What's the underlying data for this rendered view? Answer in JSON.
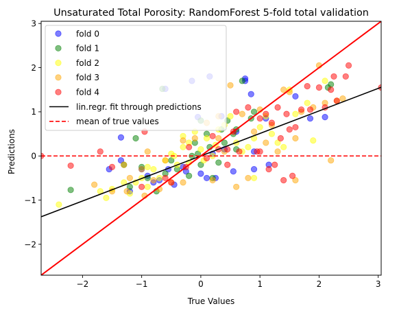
{
  "chart_data": {
    "type": "scatter",
    "title": "Unsaturated Total Porosity: RandomForest 5-fold total validation",
    "xlabel": "True Values",
    "ylabel": "Predictions",
    "xlim": [
      -2.7,
      3.05
    ],
    "ylim": [
      -2.7,
      3.05
    ],
    "xticks": [
      -2,
      -1,
      0,
      1,
      2,
      3
    ],
    "yticks": [
      -2,
      -1,
      0,
      1,
      2,
      3
    ],
    "xtick_labels": [
      "−2",
      "−1",
      "0",
      "1",
      "2",
      "3"
    ],
    "ytick_labels": [
      "−2",
      "−1",
      "0",
      "1",
      "2",
      "3"
    ],
    "grid": false,
    "legend_position": "top-left",
    "series": [
      {
        "name": "fold 0",
        "color": "#0000ff",
        "points": [
          [
            -1.35,
            0.42
          ],
          [
            -0.6,
            1.52
          ],
          [
            0.15,
            1.8
          ],
          [
            -0.15,
            1.7
          ],
          [
            0.75,
            1.75
          ],
          [
            0.75,
            1.7
          ],
          [
            0.85,
            1.4
          ],
          [
            1.6,
            1.35
          ],
          [
            2.1,
            0.88
          ],
          [
            1.85,
            0.85
          ],
          [
            -0.05,
            0.88
          ],
          [
            0.35,
            0.9
          ],
          [
            0.2,
            0.05
          ],
          [
            0.1,
            -0.5
          ],
          [
            -0.3,
            -0.25
          ],
          [
            -0.55,
            -0.3
          ],
          [
            -0.8,
            -0.6
          ],
          [
            -1.2,
            -0.8
          ],
          [
            -1.55,
            -0.3
          ],
          [
            -1.35,
            -0.1
          ],
          [
            0.4,
            0.15
          ],
          [
            0.0,
            -0.4
          ],
          [
            -0.9,
            -0.45
          ],
          [
            -1.0,
            -0.3
          ],
          [
            0.55,
            -0.35
          ],
          [
            0.9,
            -0.3
          ],
          [
            -0.7,
            -0.55
          ],
          [
            1.1,
            0.85
          ],
          [
            0.25,
            -0.5
          ],
          [
            -0.25,
            -0.35
          ],
          [
            -0.45,
            -0.65
          ],
          [
            0.6,
            0.55
          ],
          [
            0.9,
            0.1
          ],
          [
            1.15,
            -0.2
          ]
        ]
      },
      {
        "name": "fold 1",
        "color": "#008000",
        "points": [
          [
            -2.2,
            -0.77
          ],
          [
            -1.1,
            0.4
          ],
          [
            -0.65,
            1.52
          ],
          [
            0.0,
            0.8
          ],
          [
            0.45,
            0.8
          ],
          [
            0.7,
            1.7
          ],
          [
            0.6,
            0.6
          ],
          [
            0.85,
            0.85
          ],
          [
            0.9,
            1.0
          ],
          [
            2.2,
            1.62
          ],
          [
            2.15,
            1.55
          ],
          [
            -0.05,
            0.05
          ],
          [
            0.1,
            0.5
          ],
          [
            -0.4,
            -0.3
          ],
          [
            -0.6,
            -0.4
          ],
          [
            -0.9,
            -0.5
          ],
          [
            -1.2,
            -0.7
          ],
          [
            -1.3,
            -0.2
          ],
          [
            0.3,
            -0.15
          ],
          [
            0.4,
            0.3
          ],
          [
            0.2,
            -0.5
          ],
          [
            -0.2,
            -0.45
          ],
          [
            -0.75,
            -0.8
          ],
          [
            -1.0,
            -0.25
          ],
          [
            0.15,
            0.2
          ],
          [
            0.55,
            0.5
          ],
          [
            0.0,
            -0.2
          ],
          [
            -0.15,
            0.0
          ],
          [
            0.35,
            0.6
          ],
          [
            0.6,
            0.15
          ],
          [
            -0.1,
            0.3
          ],
          [
            -0.5,
            -0.1
          ]
        ]
      },
      {
        "name": "fold 2",
        "color": "#ffff00",
        "points": [
          [
            -2.4,
            -1.1
          ],
          [
            -1.5,
            -0.75
          ],
          [
            -1.6,
            -0.95
          ],
          [
            -1.3,
            -0.6
          ],
          [
            -1.2,
            -0.85
          ],
          [
            -1.0,
            -0.5
          ],
          [
            -0.9,
            -0.7
          ],
          [
            -0.8,
            -0.3
          ],
          [
            -0.6,
            -0.1
          ],
          [
            -0.5,
            0.05
          ],
          [
            -0.4,
            -0.2
          ],
          [
            -0.3,
            0.2
          ],
          [
            -0.2,
            0.3
          ],
          [
            -0.1,
            0.55
          ],
          [
            0.0,
            0.15
          ],
          [
            0.1,
            0.4
          ],
          [
            0.2,
            0.0
          ],
          [
            0.3,
            0.6
          ],
          [
            0.4,
            0.7
          ],
          [
            0.5,
            0.9
          ],
          [
            0.6,
            0.3
          ],
          [
            0.7,
            0.1
          ],
          [
            0.8,
            0.2
          ],
          [
            0.9,
            0.4
          ],
          [
            1.0,
            0.65
          ],
          [
            1.1,
            0.9
          ],
          [
            1.2,
            0.5
          ],
          [
            1.3,
            0.3
          ],
          [
            1.4,
            0.2
          ],
          [
            1.5,
            1.5
          ],
          [
            1.6,
            0.95
          ],
          [
            1.8,
            1.2
          ],
          [
            1.9,
            0.35
          ],
          [
            2.1,
            1.7
          ],
          [
            -0.9,
            -0.25
          ],
          [
            -1.1,
            -0.6
          ],
          [
            -0.7,
            -0.5
          ],
          [
            -0.45,
            0.0
          ],
          [
            0.25,
            0.25
          ],
          [
            0.05,
            -0.1
          ],
          [
            -1.7,
            -0.8
          ],
          [
            -0.3,
            0.45
          ],
          [
            0.9,
            -0.5
          ],
          [
            -0.2,
            -0.15
          ]
        ]
      },
      {
        "name": "fold 3",
        "color": "#ffa500",
        "points": [
          [
            -1.8,
            -0.65
          ],
          [
            -1.5,
            -0.8
          ],
          [
            -1.2,
            -0.5
          ],
          [
            -1.0,
            -0.3
          ],
          [
            -0.9,
            0.1
          ],
          [
            -0.7,
            -0.75
          ],
          [
            -0.5,
            -0.6
          ],
          [
            -0.3,
            0.35
          ],
          [
            -0.1,
            0.4
          ],
          [
            0.1,
            0.75
          ],
          [
            0.3,
            0.9
          ],
          [
            0.5,
            1.6
          ],
          [
            0.7,
            0.95
          ],
          [
            0.9,
            0.55
          ],
          [
            1.0,
            1.05
          ],
          [
            1.2,
            0.7
          ],
          [
            1.4,
            1.5
          ],
          [
            1.5,
            1.45
          ],
          [
            1.6,
            0.4
          ],
          [
            1.7,
            1.0
          ],
          [
            1.9,
            1.1
          ],
          [
            2.0,
            2.05
          ],
          [
            2.1,
            1.2
          ],
          [
            2.3,
            1.25
          ],
          [
            2.2,
            -0.1
          ],
          [
            1.6,
            -0.55
          ],
          [
            0.8,
            -0.5
          ],
          [
            0.6,
            -0.7
          ],
          [
            -0.3,
            -0.6
          ],
          [
            -0.6,
            -0.1
          ],
          [
            -1.3,
            -0.2
          ],
          [
            0.2,
            -0.55
          ],
          [
            1.1,
            0.3
          ],
          [
            1.3,
            0.1
          ],
          [
            2.4,
            1.3
          ],
          [
            0.4,
            0.1
          ],
          [
            -0.8,
            -0.55
          ],
          [
            -1.25,
            -0.8
          ],
          [
            -0.95,
            -0.9
          ],
          [
            0.3,
            0.4
          ]
        ]
      },
      {
        "name": "fold 4",
        "color": "#ff0000",
        "points": [
          [
            -2.7,
            0.0
          ],
          [
            -2.2,
            -0.22
          ],
          [
            -1.7,
            0.1
          ],
          [
            -1.5,
            -0.25
          ],
          [
            -0.95,
            0.55
          ],
          [
            -0.5,
            -0.6
          ],
          [
            -0.2,
            0.2
          ],
          [
            0.1,
            -0.05
          ],
          [
            0.45,
            0.15
          ],
          [
            0.55,
            0.55
          ],
          [
            0.6,
            1.0
          ],
          [
            0.8,
            1.1
          ],
          [
            1.0,
            0.85
          ],
          [
            1.15,
            -0.3
          ],
          [
            1.25,
            -0.2
          ],
          [
            1.35,
            0.4
          ],
          [
            1.45,
            0.95
          ],
          [
            1.5,
            0.6
          ],
          [
            1.6,
            0.65
          ],
          [
            1.7,
            1.05
          ],
          [
            1.8,
            1.58
          ],
          [
            1.85,
            1.05
          ],
          [
            2.0,
            1.55
          ],
          [
            2.1,
            1.1
          ],
          [
            2.2,
            1.5
          ],
          [
            2.25,
            1.8
          ],
          [
            2.3,
            1.25
          ],
          [
            2.45,
            1.8
          ],
          [
            2.5,
            2.05
          ],
          [
            3.05,
            1.55
          ],
          [
            1.3,
            1.1
          ],
          [
            1.4,
            -0.55
          ],
          [
            1.55,
            -0.45
          ],
          [
            0.45,
            -0.2
          ],
          [
            1.0,
            0.1
          ],
          [
            0.95,
            0.1
          ],
          [
            -0.6,
            -0.5
          ],
          [
            -1.0,
            -0.7
          ],
          [
            -0.25,
            -0.25
          ],
          [
            0.2,
            0.45
          ],
          [
            0.65,
            0.1
          ],
          [
            1.1,
            0.95
          ],
          [
            1.2,
            0.75
          ],
          [
            0.3,
            0.15
          ]
        ]
      }
    ],
    "fit_line": {
      "name": "lin.regr. fit through predictions",
      "color": "#000000",
      "slope": 0.51,
      "intercept": 0.0
    },
    "mean_line": {
      "name": "mean of true values",
      "color": "#ff0000",
      "value": 0.0
    },
    "identity_line": {
      "color": "#ff0000"
    }
  }
}
